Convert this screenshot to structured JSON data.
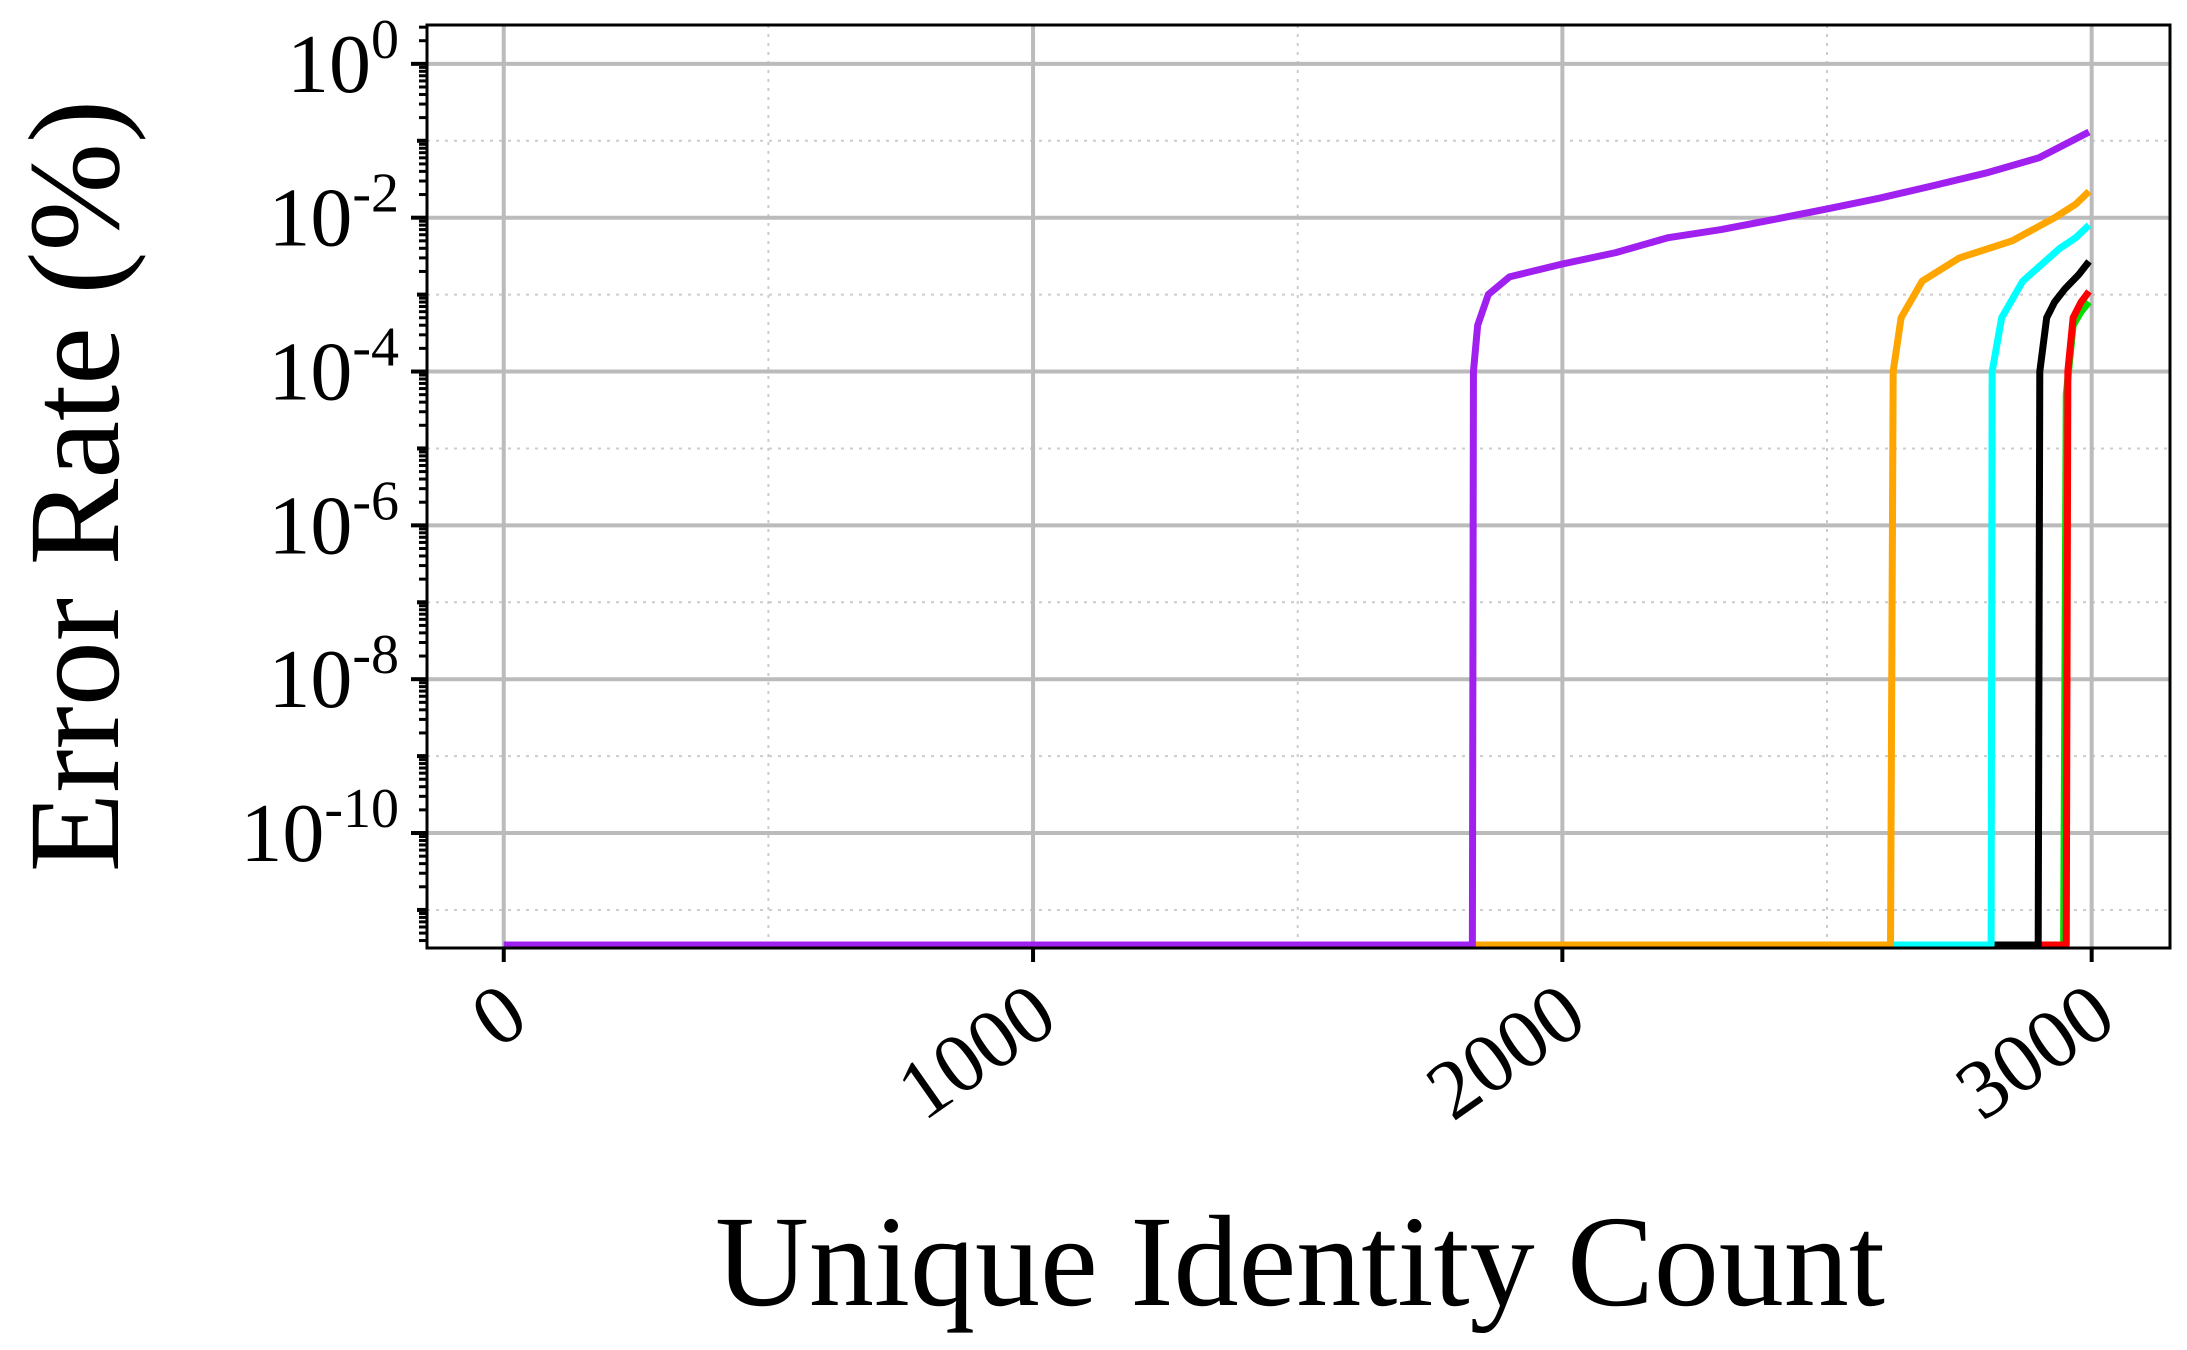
{
  "chart_data": {
    "type": "line",
    "xlabel": "Unique Identity Count",
    "ylabel": "Error Rate (%)",
    "xlim": [
      -145,
      3148
    ],
    "ylim": [
      3.2e-12,
      3.2
    ],
    "ylog": true,
    "grid": true,
    "xticks": [
      0,
      1000,
      2000,
      3000
    ],
    "xminorticks": [
      500,
      1500,
      2500
    ],
    "yticks": [
      {
        "value": 1,
        "label": "10",
        "exponent": "0"
      },
      {
        "value": 0.01,
        "label": "10",
        "exponent": "-2"
      },
      {
        "value": 0.0001,
        "label": "10",
        "exponent": "-4"
      },
      {
        "value": 1e-06,
        "label": "10",
        "exponent": "-6"
      },
      {
        "value": 1e-08,
        "label": "10",
        "exponent": "-8"
      },
      {
        "value": 1e-10,
        "label": "10",
        "exponent": "-10"
      }
    ],
    "yminorticks": [
      0.1,
      0.001,
      1e-05,
      1e-07,
      1e-09,
      1e-11
    ],
    "series": [
      {
        "color": "#00e000",
        "x": [
          0,
          2947,
          2952,
          2965,
          2980,
          2995
        ],
        "values": [
          3.5e-12,
          3.5e-12,
          5e-05,
          0.0004,
          0.0006,
          0.0008
        ]
      },
      {
        "color": "#ff0000",
        "x": [
          0,
          2952,
          2955,
          2965,
          2980,
          2995
        ],
        "values": [
          3.5e-12,
          3.5e-12,
          0.0001,
          0.0005,
          0.0008,
          0.0011
        ]
      },
      {
        "color": "#000000",
        "x": [
          0,
          2899,
          2902,
          2915,
          2930,
          2950,
          2975,
          2995
        ],
        "values": [
          3.5e-12,
          3.5e-12,
          0.0001,
          0.0005,
          0.0008,
          0.0012,
          0.0018,
          0.0027
        ]
      },
      {
        "color": "#00ffff",
        "x": [
          0,
          2810,
          2812,
          2830,
          2870,
          2940,
          2970,
          2995
        ],
        "values": [
          3.5e-12,
          3.5e-12,
          0.0001,
          0.0005,
          0.0015,
          0.004,
          0.0055,
          0.008
        ]
      },
      {
        "color": "#ffa500",
        "x": [
          0,
          2620,
          2625,
          2640,
          2680,
          2750,
          2850,
          2930,
          2970,
          2995
        ],
        "values": [
          3.5e-12,
          3.5e-12,
          0.0001,
          0.0005,
          0.0015,
          0.003,
          0.005,
          0.01,
          0.015,
          0.022
        ]
      },
      {
        "color": "#a020f0",
        "x": [
          0,
          1830,
          1832,
          1840,
          1860,
          1900,
          2000,
          2100,
          2200,
          2300,
          2400,
          2500,
          2600,
          2700,
          2800,
          2900,
          2995
        ],
        "values": [
          3.5e-12,
          3.5e-12,
          0.0001,
          0.0004,
          0.001,
          0.0017,
          0.0025,
          0.0035,
          0.0055,
          0.007,
          0.0095,
          0.013,
          0.018,
          0.026,
          0.038,
          0.06,
          0.13
        ]
      }
    ]
  }
}
